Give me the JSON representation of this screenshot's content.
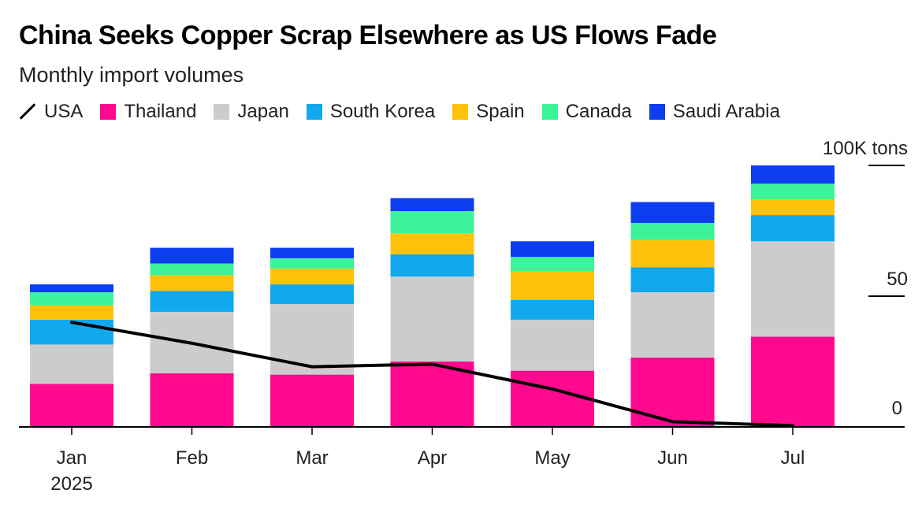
{
  "title": "China Seeks Copper Scrap Elsewhere as US Flows Fade",
  "subtitle": "Monthly import volumes",
  "legend": [
    {
      "name": "USA",
      "kind": "line",
      "color": "#000000"
    },
    {
      "name": "Thailand",
      "kind": "box",
      "color": "#ff0a8f"
    },
    {
      "name": "Japan",
      "kind": "box",
      "color": "#cccccc"
    },
    {
      "name": "South Korea",
      "kind": "box",
      "color": "#12a8ee"
    },
    {
      "name": "Spain",
      "kind": "box",
      "color": "#ffc20a"
    },
    {
      "name": "Canada",
      "kind": "box",
      "color": "#3cf39a"
    },
    {
      "name": "Saudi Arabia",
      "kind": "box",
      "color": "#0c3ef0"
    }
  ],
  "chart_data": {
    "type": "bar",
    "stacked": true,
    "categories": [
      "Jan",
      "Feb",
      "Mar",
      "Apr",
      "May",
      "Jun",
      "Jul"
    ],
    "x_sublabel": "2025",
    "y_axis": {
      "ticks": [
        "0",
        "50",
        "100K tons"
      ],
      "tick_values": [
        0,
        50,
        100
      ],
      "ylim": [
        0,
        100
      ],
      "position": "right"
    },
    "series": [
      {
        "name": "Thailand",
        "color": "#ff0a8f",
        "values": [
          16.5,
          20.5,
          20,
          25,
          21.5,
          26.5,
          34.5
        ]
      },
      {
        "name": "Japan",
        "color": "#cccccc",
        "values": [
          15,
          23.5,
          27,
          32.5,
          19.5,
          25,
          36.5
        ]
      },
      {
        "name": "South Korea",
        "color": "#12a8ee",
        "values": [
          9.5,
          8,
          7.5,
          8.5,
          7.5,
          9.5,
          10
        ]
      },
      {
        "name": "Spain",
        "color": "#ffc20a",
        "values": [
          5.5,
          6,
          6,
          8,
          11,
          10.5,
          6
        ]
      },
      {
        "name": "Canada",
        "color": "#3cf39a",
        "values": [
          5,
          4.5,
          4,
          8.5,
          5.5,
          6.5,
          6
        ]
      },
      {
        "name": "Saudi Arabia",
        "color": "#0c3ef0",
        "values": [
          3,
          6,
          4,
          5,
          6,
          8,
          7
        ]
      }
    ],
    "line": {
      "name": "USA",
      "color": "#000000",
      "values": [
        40,
        32,
        23,
        24,
        14.5,
        2,
        0.5
      ]
    }
  }
}
